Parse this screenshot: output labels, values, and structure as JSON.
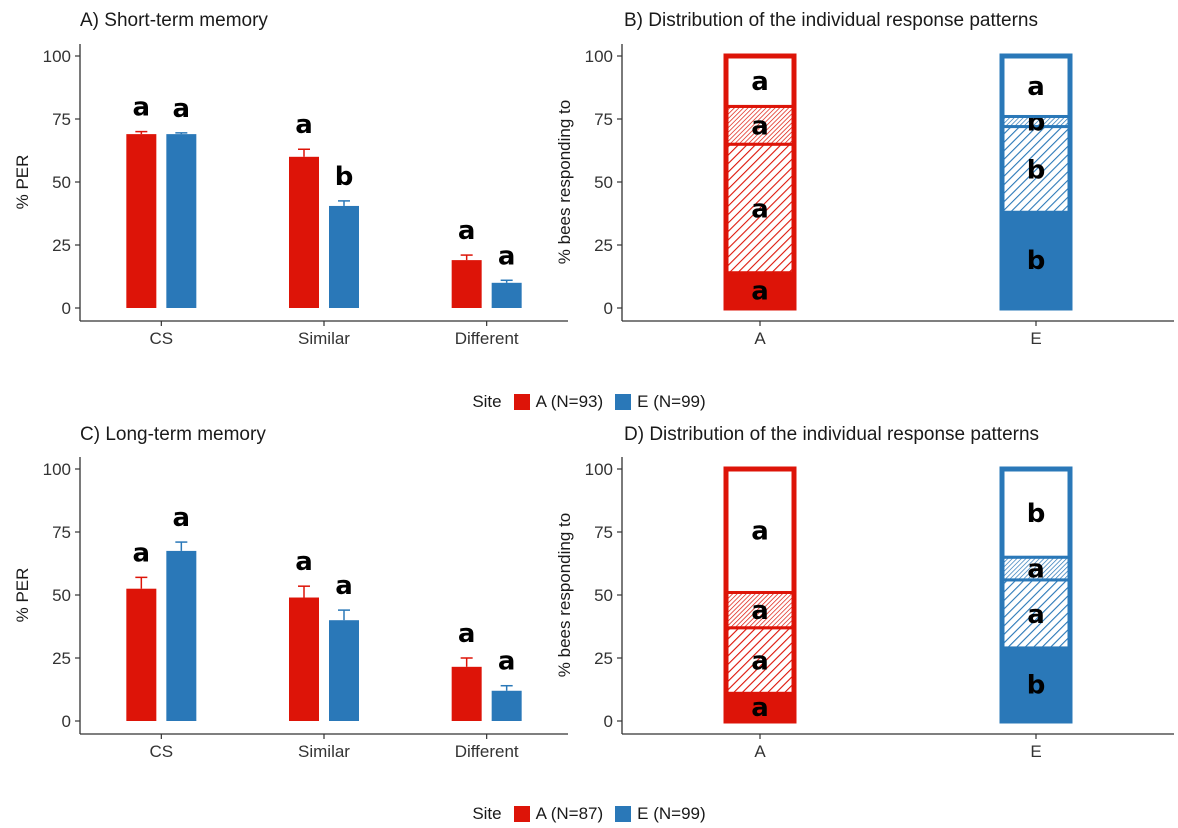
{
  "colors": {
    "siteA": "#dd1408",
    "siteE": "#2a78b8"
  },
  "legends": [
    {
      "title": "Site",
      "items": [
        {
          "label": "A (N=93)",
          "color": "#dd1408"
        },
        {
          "label": "E (N=99)",
          "color": "#2a78b8"
        }
      ]
    },
    {
      "title": "Site",
      "items": [
        {
          "label": "A (N=87)",
          "color": "#dd1408"
        },
        {
          "label": "E (N=99)",
          "color": "#2a78b8"
        }
      ]
    }
  ],
  "chart_data": [
    {
      "type": "bar",
      "title": "A) Short-term memory",
      "ylabel": "% PER",
      "xlabel": "",
      "ylim": [
        0,
        100
      ],
      "yticks": [
        0,
        25,
        50,
        75,
        100
      ],
      "categories": [
        "CS",
        "Similar",
        "Different"
      ],
      "series": [
        {
          "name": "A (N=93)",
          "values": [
            69,
            60,
            19
          ],
          "errors": [
            1,
            3,
            2
          ],
          "letters": [
            "a",
            "a",
            "a"
          ]
        },
        {
          "name": "E (N=99)",
          "values": [
            69,
            40.5,
            10
          ],
          "errors": [
            0.5,
            2,
            1
          ],
          "letters": [
            "a",
            "b",
            "a"
          ]
        }
      ],
      "grid": false
    },
    {
      "type": "bar",
      "stacked": true,
      "title": "B) Distribution of the individual response patterns",
      "ylabel": "% bees responding to",
      "xlabel": "",
      "ylim": [
        0,
        100
      ],
      "yticks": [
        0,
        25,
        50,
        75,
        100
      ],
      "categories": [
        "A",
        "E"
      ],
      "stacks": [
        {
          "site": "A",
          "segments": [
            {
              "bottom": 0,
              "top": 14,
              "pattern": "solid",
              "letter": "a"
            },
            {
              "bottom": 14,
              "top": 65,
              "pattern": "hatch-wide",
              "letter": "a"
            },
            {
              "bottom": 65,
              "top": 80,
              "pattern": "hatch-dense",
              "letter": "a"
            },
            {
              "bottom": 80,
              "top": 100,
              "pattern": "empty",
              "letter": "a"
            }
          ]
        },
        {
          "site": "E",
          "segments": [
            {
              "bottom": 0,
              "top": 38,
              "pattern": "solid",
              "letter": "b"
            },
            {
              "bottom": 38,
              "top": 72,
              "pattern": "hatch-wide",
              "letter": "b"
            },
            {
              "bottom": 72,
              "top": 76,
              "pattern": "hatch-dense",
              "letter": "b"
            },
            {
              "bottom": 76,
              "top": 100,
              "pattern": "empty",
              "letter": "a"
            }
          ]
        }
      ],
      "grid": false
    },
    {
      "type": "bar",
      "title": "C) Long-term memory",
      "ylabel": "% PER",
      "xlabel": "",
      "ylim": [
        0,
        100
      ],
      "yticks": [
        0,
        25,
        50,
        75,
        100
      ],
      "categories": [
        "CS",
        "Similar",
        "Different"
      ],
      "series": [
        {
          "name": "A (N=87)",
          "values": [
            52.5,
            49,
            21.5
          ],
          "errors": [
            4.5,
            4.5,
            3.5
          ],
          "letters": [
            "a",
            "a",
            "a"
          ]
        },
        {
          "name": "E (N=99)",
          "values": [
            67.5,
            40,
            12
          ],
          "errors": [
            3.5,
            4,
            2
          ],
          "letters": [
            "a",
            "a",
            "a"
          ]
        }
      ],
      "grid": false
    },
    {
      "type": "bar",
      "stacked": true,
      "title": "D) Distribution of the individual response patterns",
      "ylabel": "% bees responding to",
      "xlabel": "",
      "ylim": [
        0,
        100
      ],
      "yticks": [
        0,
        25,
        50,
        75,
        100
      ],
      "categories": [
        "A",
        "E"
      ],
      "stacks": [
        {
          "site": "A",
          "segments": [
            {
              "bottom": 0,
              "top": 11,
              "pattern": "solid",
              "letter": "a"
            },
            {
              "bottom": 11,
              "top": 37,
              "pattern": "hatch-wide",
              "letter": "a"
            },
            {
              "bottom": 37,
              "top": 51,
              "pattern": "hatch-dense",
              "letter": "a"
            },
            {
              "bottom": 51,
              "top": 100,
              "pattern": "empty",
              "letter": "a"
            }
          ]
        },
        {
          "site": "E",
          "segments": [
            {
              "bottom": 0,
              "top": 29,
              "pattern": "solid",
              "letter": "b"
            },
            {
              "bottom": 29,
              "top": 56,
              "pattern": "hatch-wide",
              "letter": "a"
            },
            {
              "bottom": 56,
              "top": 65,
              "pattern": "hatch-dense",
              "letter": "a"
            },
            {
              "bottom": 65,
              "top": 100,
              "pattern": "empty",
              "letter": "b"
            }
          ]
        }
      ],
      "grid": false
    }
  ]
}
